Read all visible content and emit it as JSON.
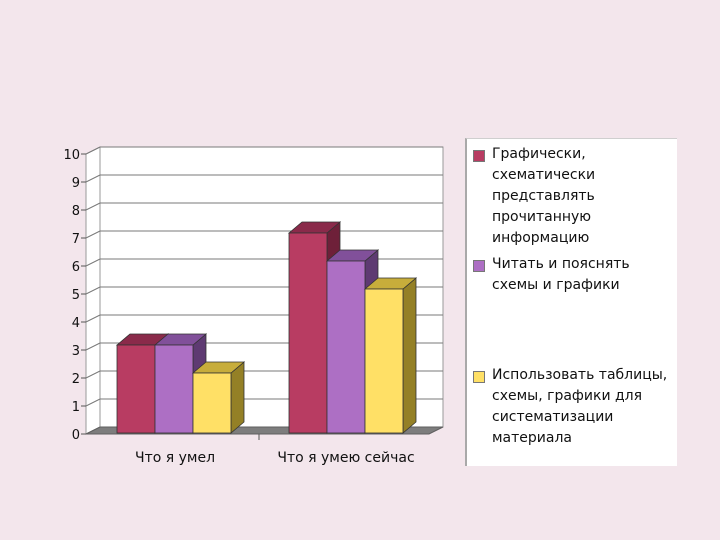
{
  "chart_data": {
    "type": "bar",
    "categories": [
      "Что я умел",
      "Что я умею сейчас"
    ],
    "series": [
      {
        "name": "Графически, схематически представлять прочитанную информацию",
        "values": [
          3,
          7
        ],
        "color": "#b83c62",
        "top_color": "#8a2a4a",
        "side_color": "#6e2039"
      },
      {
        "name": "Читать и пояснять схемы и графики",
        "values": [
          3,
          6
        ],
        "color": "#ad6fc4",
        "top_color": "#81509a",
        "side_color": "#5e3a72"
      },
      {
        "name": "Использовать таблицы, схемы, графики для систематизации материала",
        "values": [
          2,
          5
        ],
        "color": "#ffe066",
        "top_color": "#c7ad3b",
        "side_color": "#948026"
      }
    ],
    "ylim": [
      0,
      10
    ],
    "yticks": [
      "0",
      "1",
      "2",
      "3",
      "4",
      "5",
      "6",
      "7",
      "8",
      "9",
      "10"
    ],
    "grid": true,
    "legend_position": "right",
    "title": "",
    "xlabel": "",
    "ylabel": ""
  }
}
